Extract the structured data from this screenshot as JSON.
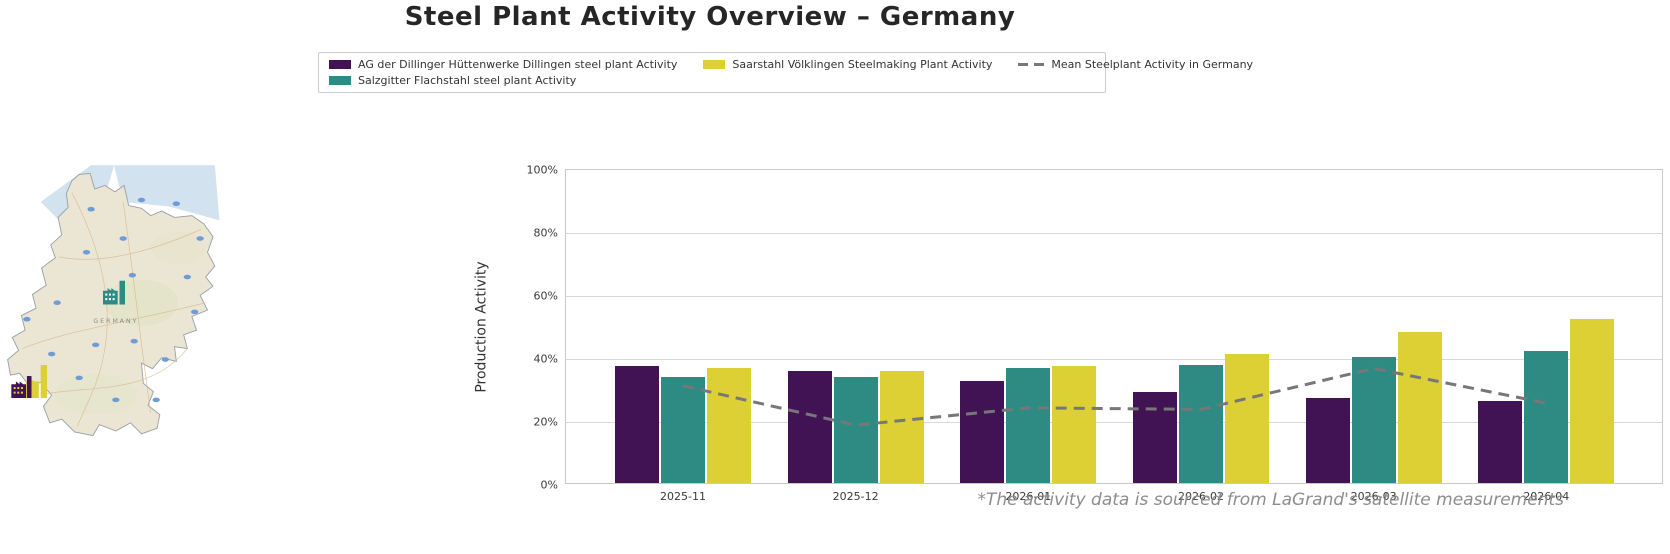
{
  "title": "Steel Plant Activity Overview – Germany",
  "legend": {
    "items": [
      {
        "label": "AG der Dillinger Hüttenwerke Dillingen steel plant Activity",
        "color": "#411254",
        "type": "patch"
      },
      {
        "label": "Salzgitter Flachstahl steel plant Activity",
        "color": "#2e8b84",
        "type": "patch"
      },
      {
        "label": "Saarstahl Völklingen Steelmaking Plant Activity",
        "color": "#ddd035",
        "type": "patch"
      },
      {
        "label": "Mean Steelplant Activity in Germany",
        "color": "#777777",
        "type": "dashed-line"
      }
    ]
  },
  "map": {
    "label": "GERMANY",
    "markers": [
      {
        "id": "salzgitter-plant",
        "color": "#2e8b84"
      },
      {
        "id": "dillingen-plant",
        "color": "#411254"
      },
      {
        "id": "voelklingen-plant",
        "color": "#ddd035"
      }
    ]
  },
  "chart_data": {
    "type": "bar",
    "categories": [
      "2025-11",
      "2025-12",
      "2026-01",
      "2026-02",
      "2026-03",
      "2026-04"
    ],
    "series": [
      {
        "name": "AG der Dillinger Hüttenwerke Dillingen steel plant Activity",
        "color": "#411254",
        "values": [
          37,
          35.5,
          32.5,
          29,
          27,
          26
        ]
      },
      {
        "name": "Salzgitter Flachstahl steel plant Activity",
        "color": "#2e8b84",
        "values": [
          33.5,
          33.5,
          36.5,
          37.5,
          40,
          42
        ]
      },
      {
        "name": "Saarstahl Völklingen Steelmaking Plant Activity",
        "color": "#ddd035",
        "values": [
          36.5,
          35.5,
          37,
          41,
          48,
          52
        ]
      }
    ],
    "line_series": {
      "name": "Mean Steelplant Activity in Germany",
      "color": "#777777",
      "style": "dashed",
      "values": [
        31.5,
        19,
        24.5,
        24,
        37,
        26
      ]
    },
    "title": "Steel Plant Activity Overview – Germany",
    "xlabel": "",
    "ylabel": "Production Activity",
    "ylim": [
      0,
      100
    ],
    "yticks": [
      "0%",
      "20%",
      "40%",
      "60%",
      "80%",
      "100%"
    ],
    "grid": "horizontal",
    "legend_position": "top"
  },
  "footnote": "*The activity data is sourced from LaGrand's satellite measurements"
}
